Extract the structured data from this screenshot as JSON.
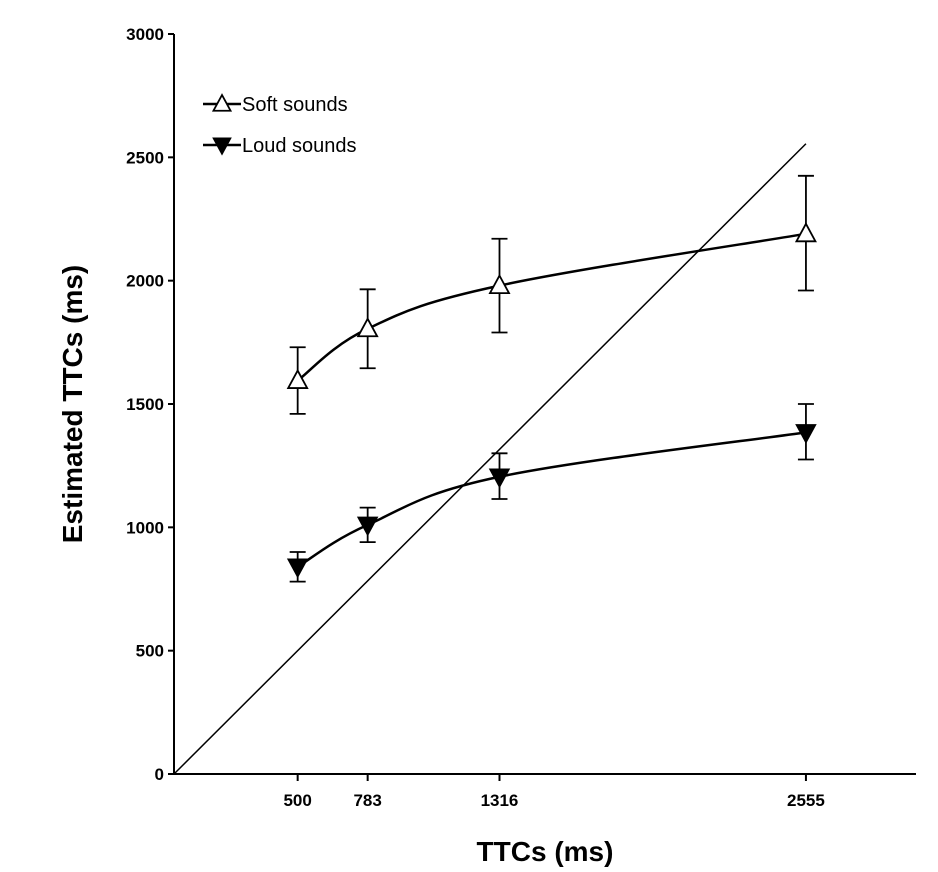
{
  "chart_data": {
    "type": "line",
    "xlabel": "TTCs (ms)",
    "ylabel": "Estimated TTCs (ms)",
    "ylim": [
      0,
      3000
    ],
    "xlim": [
      0,
      3000
    ],
    "x_ticks": [
      500,
      783,
      1316,
      2555
    ],
    "y_ticks": [
      0,
      500,
      1000,
      1500,
      2000,
      2500,
      3000
    ],
    "grid": false,
    "legend_position": "top-left",
    "reference_line": {
      "from": [
        0,
        0
      ],
      "to": [
        2555,
        2555
      ]
    },
    "series": [
      {
        "name": "Soft sounds",
        "marker": "open-triangle-up",
        "x": [
          500,
          783,
          1316,
          2555
        ],
        "y": [
          1595,
          1805,
          1980,
          2190
        ],
        "error_upper": [
          1730,
          1965,
          2170,
          2425
        ],
        "error_lower": [
          1460,
          1645,
          1790,
          1960
        ]
      },
      {
        "name": "Loud sounds",
        "marker": "filled-triangle-down",
        "x": [
          500,
          783,
          1316,
          2555
        ],
        "y": [
          840,
          1010,
          1205,
          1385
        ],
        "error_upper": [
          900,
          1080,
          1300,
          1500
        ],
        "error_lower": [
          780,
          940,
          1115,
          1275
        ]
      }
    ]
  }
}
